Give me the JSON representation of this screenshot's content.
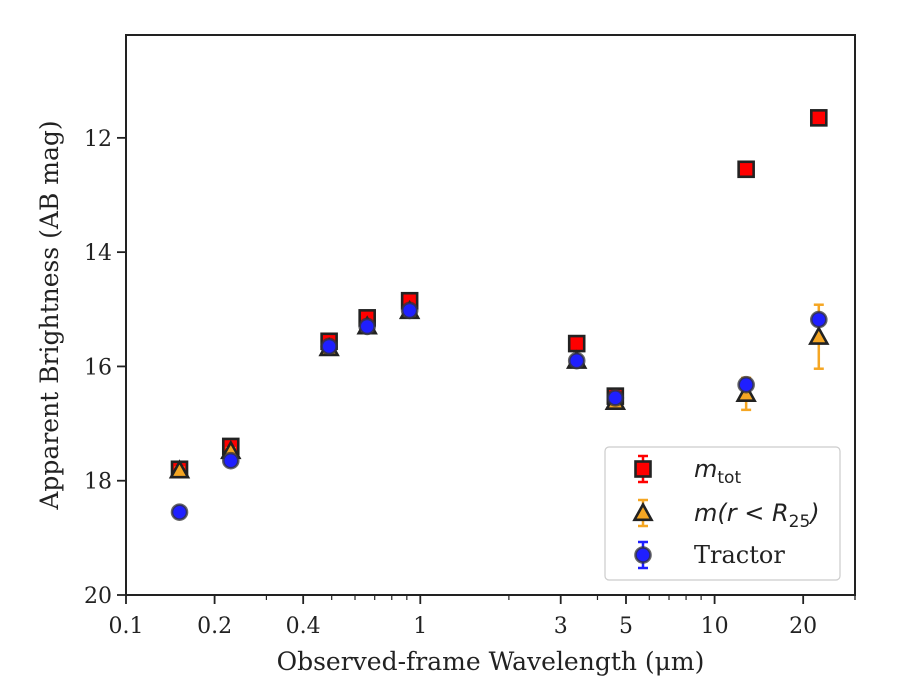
{
  "chart_data": {
    "type": "scatter",
    "xlabel": "Observed-frame Wavelength (μm)",
    "ylabel": "Apparent Brightness (AB mag)",
    "xscale": "log",
    "xlim": [
      0.1,
      30
    ],
    "ylim": [
      20,
      10.2
    ],
    "y_inverted": true,
    "x_ticks": [
      0.1,
      0.2,
      0.4,
      1,
      3,
      5,
      10,
      20
    ],
    "x_tick_labels": [
      "0.1",
      "0.2",
      "0.4",
      "1",
      "3",
      "5",
      "10",
      "20"
    ],
    "y_ticks": [
      12,
      14,
      16,
      18,
      20
    ],
    "y_tick_labels": [
      "12",
      "14",
      "16",
      "18",
      "20"
    ],
    "grid": false,
    "legend_position": "bottom-right",
    "series": [
      {
        "name": "m_tot",
        "label_main": "m",
        "label_sub": "tot",
        "marker": "square",
        "color": "#ff0000",
        "edge_color": "#222222",
        "errorbar_color": "#ff0000",
        "x": [
          0.152,
          0.227,
          0.49,
          0.66,
          0.92,
          3.4,
          4.6,
          12.8,
          22.6
        ],
        "y": [
          17.8,
          17.4,
          15.56,
          15.15,
          14.85,
          15.6,
          16.52,
          12.55,
          11.65
        ],
        "yerr": [
          0.06,
          0.06,
          0.05,
          0.05,
          0.05,
          0.05,
          0.05,
          0.05,
          0.05
        ]
      },
      {
        "name": "m(r < R_25)",
        "label_main": "m(r < R",
        "label_sub": "25",
        "label_end": ")",
        "marker": "triangle",
        "color": "#f5a623",
        "edge_color": "#222222",
        "errorbar_color": "#f5a623",
        "x": [
          0.152,
          0.227,
          0.49,
          0.66,
          0.92,
          3.4,
          4.6,
          12.8,
          22.6
        ],
        "y": [
          17.82,
          17.48,
          15.68,
          15.3,
          15.03,
          15.9,
          16.62,
          16.48,
          15.48
        ],
        "yerr": [
          0.05,
          0.05,
          0.05,
          0.05,
          0.05,
          0.05,
          0.05,
          0.28,
          0.56
        ]
      },
      {
        "name": "Tractor",
        "label_main": "Tractor",
        "marker": "circle",
        "color": "#1f1fff",
        "edge_color": "#333333",
        "errorbar_color": "#1f1fff",
        "x": [
          0.152,
          0.227,
          0.49,
          0.66,
          0.92,
          3.4,
          4.6,
          12.8,
          22.6
        ],
        "y": [
          18.55,
          17.65,
          15.65,
          15.3,
          15.02,
          15.9,
          16.55,
          16.32,
          15.18
        ],
        "yerr": [
          0.05,
          0.05,
          0.05,
          0.05,
          0.05,
          0.05,
          0.05,
          0.08,
          0.08
        ]
      }
    ]
  }
}
